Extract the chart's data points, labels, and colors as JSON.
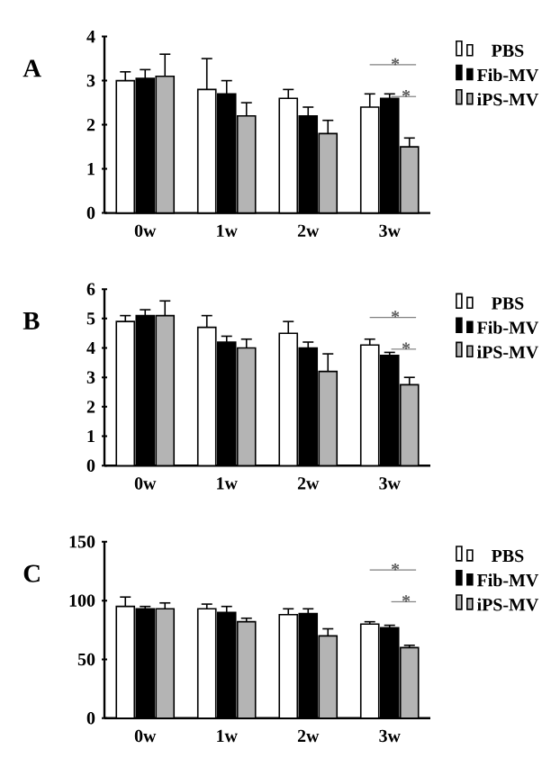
{
  "chart_data": [
    {
      "type": "bar",
      "title": "A",
      "categories": [
        "0w",
        "1w",
        "2w",
        "3w"
      ],
      "ylim": [
        0,
        4
      ],
      "yticks": [
        0,
        1,
        2,
        3,
        4
      ],
      "legend": "right",
      "grid": false,
      "annotations": [
        "*",
        "*"
      ],
      "series": [
        {
          "name": "PBS",
          "color": "#ffffff",
          "values": [
            3.0,
            2.8,
            2.6,
            2.4
          ],
          "errors": [
            0.2,
            0.7,
            0.2,
            0.3
          ]
        },
        {
          "name": "Fib-MV",
          "color": "#000000",
          "values": [
            3.05,
            2.7,
            2.2,
            2.6
          ],
          "errors": [
            0.2,
            0.3,
            0.2,
            0.1
          ]
        },
        {
          "name": "iPS-MV",
          "color": "#b4b4b4",
          "values": [
            3.1,
            2.2,
            1.8,
            1.5
          ],
          "errors": [
            0.5,
            0.3,
            0.3,
            0.2
          ]
        }
      ]
    },
    {
      "type": "bar",
      "title": "B",
      "categories": [
        "0w",
        "1w",
        "2w",
        "3w"
      ],
      "ylim": [
        0,
        6
      ],
      "yticks": [
        0,
        1,
        2,
        3,
        4,
        5,
        6
      ],
      "legend": "right",
      "grid": false,
      "annotations": [
        "*",
        "*"
      ],
      "series": [
        {
          "name": "PBS",
          "color": "#ffffff",
          "values": [
            4.9,
            4.7,
            4.5,
            4.1
          ],
          "errors": [
            0.2,
            0.4,
            0.4,
            0.2
          ]
        },
        {
          "name": "Fib-MV",
          "color": "#000000",
          "values": [
            5.1,
            4.2,
            4.0,
            3.75
          ],
          "errors": [
            0.2,
            0.2,
            0.2,
            0.1
          ]
        },
        {
          "name": "iPS-MV",
          "color": "#b4b4b4",
          "values": [
            5.1,
            4.0,
            3.2,
            2.75
          ],
          "errors": [
            0.5,
            0.3,
            0.6,
            0.25
          ]
        }
      ]
    },
    {
      "type": "bar",
      "title": "C",
      "categories": [
        "0w",
        "1w",
        "2w",
        "3w"
      ],
      "ylim": [
        0,
        150
      ],
      "yticks": [
        0,
        50,
        100,
        150
      ],
      "legend": "right",
      "grid": false,
      "annotations": [
        "*",
        "*"
      ],
      "series": [
        {
          "name": "PBS",
          "color": "#ffffff",
          "values": [
            95,
            93,
            88,
            80
          ],
          "errors": [
            8,
            4,
            5,
            2
          ]
        },
        {
          "name": "Fib-MV",
          "color": "#000000",
          "values": [
            93,
            90,
            89,
            77
          ],
          "errors": [
            2,
            5,
            4,
            2
          ]
        },
        {
          "name": "iPS-MV",
          "color": "#b4b4b4",
          "values": [
            93,
            82,
            70,
            60
          ],
          "errors": [
            5,
            3,
            6,
            2
          ]
        }
      ]
    }
  ]
}
